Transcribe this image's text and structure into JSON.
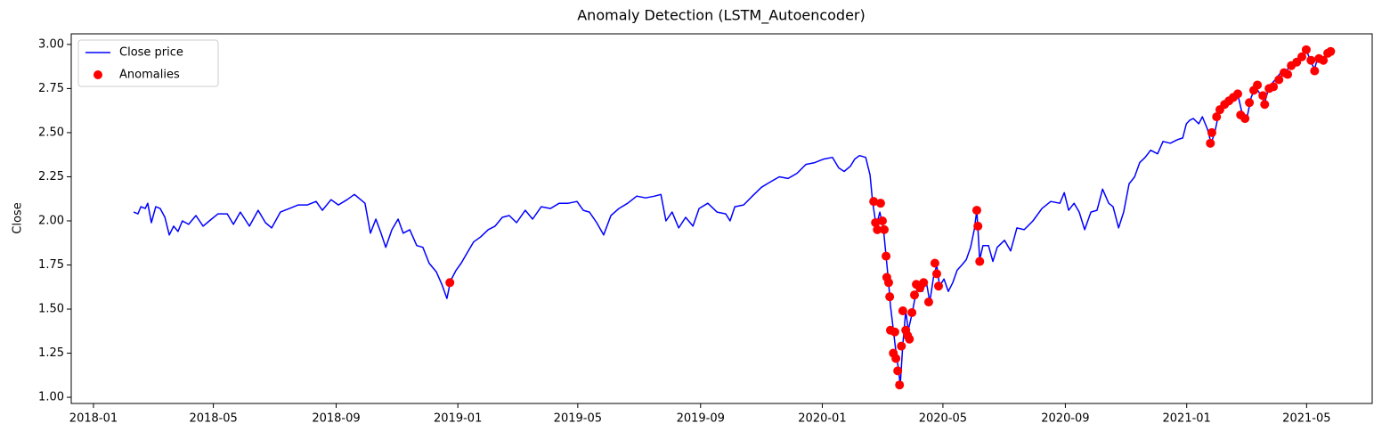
{
  "chart_data": {
    "type": "line",
    "title": "Anomaly Detection (LSTM_Autoencoder)",
    "y_label": "Close",
    "xlim": [
      2017.939,
      2021.509
    ],
    "ylim": [
      0.965,
      3.06
    ],
    "xticks": [
      {
        "value": 2018.0,
        "label": "2018-01"
      },
      {
        "value": 2018.329,
        "label": "2018-05"
      },
      {
        "value": 2018.666,
        "label": "2018-09"
      },
      {
        "value": 2019.0,
        "label": "2019-01"
      },
      {
        "value": 2019.329,
        "label": "2019-05"
      },
      {
        "value": 2019.666,
        "label": "2019-09"
      },
      {
        "value": 2020.0,
        "label": "2020-01"
      },
      {
        "value": 2020.331,
        "label": "2020-05"
      },
      {
        "value": 2020.667,
        "label": "2020-09"
      },
      {
        "value": 2021.0,
        "label": "2021-01"
      },
      {
        "value": 2021.329,
        "label": "2021-05"
      }
    ],
    "yticks": [
      {
        "value": 1,
        "label": "1.00"
      },
      {
        "value": 1.25,
        "label": "1.25"
      },
      {
        "value": 1.5,
        "label": "1.50"
      },
      {
        "value": 1.75,
        "label": "1.75"
      },
      {
        "value": 2,
        "label": "2.00"
      },
      {
        "value": 2.25,
        "label": "2.25"
      },
      {
        "value": 2.5,
        "label": "2.50"
      },
      {
        "value": 2.75,
        "label": "2.75"
      },
      {
        "value": 3,
        "label": "3.00"
      }
    ],
    "legend": "upper left",
    "series": [
      {
        "name": "Close price",
        "type": "line",
        "color": "#0000ff",
        "x": [
          2018.11,
          2018.122,
          2018.13,
          2018.142,
          2018.149,
          2018.159,
          2018.171,
          2018.183,
          2018.196,
          2018.208,
          2018.22,
          2018.232,
          2018.244,
          2018.261,
          2018.281,
          2018.301,
          2018.318,
          2018.342,
          2018.367,
          2018.384,
          2018.403,
          2018.428,
          2018.452,
          2018.472,
          2018.489,
          2018.513,
          2018.538,
          2018.562,
          2018.587,
          2018.611,
          2018.628,
          2018.652,
          2018.672,
          2018.696,
          2018.716,
          2018.745,
          2018.76,
          2018.775,
          2018.789,
          2018.802,
          2018.819,
          2018.836,
          2018.85,
          2018.868,
          2018.887,
          2018.904,
          2018.921,
          2018.941,
          2018.956,
          2018.97,
          2018.98,
          2018.995,
          2019.009,
          2019.026,
          2019.043,
          2019.063,
          2019.083,
          2019.102,
          2019.122,
          2019.141,
          2019.161,
          2019.185,
          2019.205,
          2019.229,
          2019.254,
          2019.278,
          2019.303,
          2019.327,
          2019.344,
          2019.361,
          2019.381,
          2019.4,
          2019.42,
          2019.442,
          2019.466,
          2019.491,
          2019.515,
          2019.54,
          2019.557,
          2019.571,
          2019.588,
          2019.606,
          2019.625,
          2019.645,
          2019.662,
          2019.686,
          2019.711,
          2019.735,
          2019.747,
          2019.76,
          2019.784,
          2019.808,
          2019.833,
          2019.857,
          2019.882,
          2019.906,
          2019.931,
          2019.955,
          2019.979,
          2020.004,
          2020.028,
          2020.045,
          2020.06,
          2020.077,
          2020.089,
          2020.102,
          2020.119,
          2020.131,
          2020.138,
          2020.148,
          2020.158,
          2020.168,
          2020.175,
          2020.182,
          2020.187,
          2020.195,
          2020.202,
          2020.209,
          2020.214,
          2020.221,
          2020.229,
          2020.236,
          2020.246,
          2020.256,
          2020.265,
          2020.275,
          2020.285,
          2020.295,
          2020.305,
          2020.314,
          2020.322,
          2020.334,
          2020.346,
          2020.358,
          2020.37,
          2020.383,
          2020.395,
          2020.407,
          2020.417,
          2020.424,
          2020.432,
          2020.441,
          2020.456,
          2020.468,
          2020.48,
          2020.5,
          2020.517,
          2020.534,
          2020.554,
          2020.578,
          2020.603,
          2020.627,
          2020.652,
          2020.664,
          2020.676,
          2020.691,
          2020.705,
          2020.72,
          2020.737,
          2020.754,
          2020.769,
          2020.786,
          2020.798,
          2020.813,
          2020.827,
          2020.842,
          2020.857,
          2020.871,
          2020.886,
          2020.901,
          2020.92,
          2020.935,
          2020.955,
          2020.974,
          2020.989,
          2020.999,
          2021.008,
          2021.018,
          2021.033,
          2021.043,
          2021.057,
          2021.067,
          2021.077,
          2021.087,
          2021.101,
          2021.116,
          2021.13,
          2021.14,
          2021.153,
          2021.165,
          2021.177,
          2021.189,
          2021.201,
          2021.214,
          2021.226,
          2021.243,
          2021.258,
          2021.27,
          2021.282,
          2021.292,
          2021.304,
          2021.316,
          2021.328,
          2021.341,
          2021.351,
          2021.36,
          2021.372,
          2021.385,
          2021.397
        ],
        "values": [
          2.05,
          2.04,
          2.08,
          2.07,
          2.1,
          1.99,
          2.08,
          2.07,
          2.02,
          1.92,
          1.97,
          1.94,
          2.0,
          1.98,
          2.03,
          1.97,
          2.0,
          2.04,
          2.04,
          1.98,
          2.05,
          1.97,
          2.06,
          1.99,
          1.96,
          2.05,
          2.07,
          2.09,
          2.09,
          2.11,
          2.06,
          2.12,
          2.09,
          2.12,
          2.15,
          2.1,
          1.93,
          2.01,
          1.93,
          1.85,
          1.95,
          2.01,
          1.93,
          1.95,
          1.86,
          1.85,
          1.76,
          1.71,
          1.64,
          1.56,
          1.66,
          1.72,
          1.76,
          1.82,
          1.88,
          1.91,
          1.95,
          1.97,
          2.02,
          2.03,
          1.99,
          2.06,
          2.01,
          2.08,
          2.07,
          2.1,
          2.1,
          2.11,
          2.06,
          2.05,
          1.99,
          1.92,
          2.03,
          2.07,
          2.1,
          2.14,
          2.13,
          2.14,
          2.15,
          2.0,
          2.05,
          1.96,
          2.02,
          1.97,
          2.07,
          2.1,
          2.05,
          2.04,
          2.0,
          2.08,
          2.09,
          2.14,
          2.19,
          2.22,
          2.25,
          2.24,
          2.27,
          2.32,
          2.33,
          2.35,
          2.36,
          2.3,
          2.28,
          2.31,
          2.35,
          2.37,
          2.36,
          2.26,
          2.11,
          1.97,
          2.05,
          1.95,
          1.8,
          1.65,
          1.52,
          1.38,
          1.26,
          1.16,
          1.07,
          1.3,
          1.49,
          1.38,
          1.47,
          1.58,
          1.64,
          1.6,
          1.66,
          1.54,
          1.68,
          1.75,
          1.63,
          1.67,
          1.6,
          1.65,
          1.72,
          1.75,
          1.78,
          1.85,
          1.95,
          2.06,
          1.78,
          1.86,
          1.86,
          1.77,
          1.85,
          1.89,
          1.83,
          1.96,
          1.95,
          2.0,
          2.07,
          2.11,
          2.1,
          2.16,
          2.06,
          2.1,
          2.05,
          1.95,
          2.05,
          2.06,
          2.18,
          2.1,
          2.08,
          1.96,
          2.05,
          2.21,
          2.25,
          2.33,
          2.36,
          2.4,
          2.38,
          2.45,
          2.44,
          2.46,
          2.47,
          2.55,
          2.57,
          2.58,
          2.55,
          2.59,
          2.52,
          2.44,
          2.5,
          2.6,
          2.65,
          2.68,
          2.7,
          2.72,
          2.6,
          2.58,
          2.7,
          2.76,
          2.72,
          2.67,
          2.76,
          2.8,
          2.84,
          2.83,
          2.88,
          2.9,
          2.92,
          2.94,
          2.97,
          2.9,
          2.86,
          2.93,
          2.91,
          2.95,
          2.96
        ]
      },
      {
        "name": "Anomalies",
        "type": "scatter",
        "color": "#ff0000",
        "x": [
          2018.978,
          2020.141,
          2020.146,
          2020.151,
          2020.16,
          2020.165,
          2020.17,
          2020.175,
          2020.177,
          2020.182,
          2020.185,
          2020.187,
          2020.195,
          2020.199,
          2020.202,
          2020.207,
          2020.212,
          2020.217,
          2020.221,
          2020.229,
          2020.234,
          2020.239,
          2020.246,
          2020.253,
          2020.258,
          2020.268,
          2020.278,
          2020.292,
          2020.309,
          2020.314,
          2020.319,
          2020.424,
          2020.427,
          2020.432,
          2021.065,
          2021.069,
          2021.082,
          2021.091,
          2021.104,
          2021.116,
          2021.128,
          2021.14,
          2021.148,
          2021.16,
          2021.172,
          2021.184,
          2021.194,
          2021.209,
          2021.214,
          2021.226,
          2021.238,
          2021.253,
          2021.267,
          2021.277,
          2021.287,
          2021.302,
          2021.316,
          2021.328,
          2021.341,
          2021.351,
          2021.363,
          2021.375,
          2021.387,
          2021.395
        ],
        "values": [
          1.65,
          2.11,
          1.99,
          1.95,
          2.1,
          2.0,
          1.95,
          1.8,
          1.68,
          1.65,
          1.57,
          1.38,
          1.25,
          1.37,
          1.22,
          1.15,
          1.07,
          1.29,
          1.49,
          1.38,
          1.35,
          1.33,
          1.48,
          1.58,
          1.64,
          1.62,
          1.65,
          1.54,
          1.76,
          1.7,
          1.63,
          2.06,
          1.97,
          1.77,
          2.44,
          2.5,
          2.59,
          2.63,
          2.66,
          2.68,
          2.7,
          2.72,
          2.6,
          2.58,
          2.67,
          2.74,
          2.77,
          2.71,
          2.66,
          2.75,
          2.76,
          2.8,
          2.84,
          2.83,
          2.88,
          2.9,
          2.93,
          2.97,
          2.91,
          2.85,
          2.92,
          2.91,
          2.95,
          2.96
        ]
      }
    ]
  }
}
